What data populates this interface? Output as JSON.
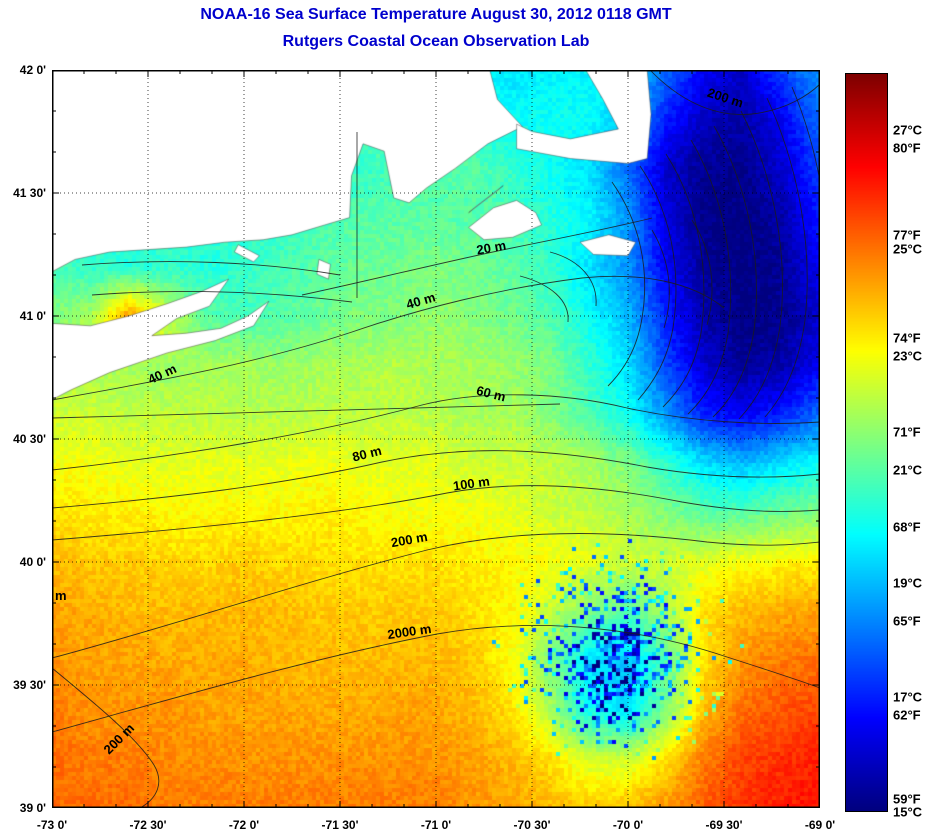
{
  "title": "NOAA-16 Sea Surface Temperature August 30, 2012 0118 GMT",
  "subtitle": "Rutgers Coastal Ocean Observation Lab",
  "title_color": "#0000cd",
  "axes": {
    "x_ticks": [
      "-73 0'",
      "-72 30'",
      "-72 0'",
      "-71 30'",
      "-71 0'",
      "-70 30'",
      "-70 0'",
      "-69 30'",
      "-69 0'"
    ],
    "y_ticks": [
      "42 0'",
      "41 30'",
      "41 0'",
      "40 30'",
      "40 0'",
      "39 30'",
      "39 0'"
    ]
  },
  "colorbar": {
    "labels": [
      {
        "text": "27°C",
        "temp_c": 27
      },
      {
        "text": "80°F",
        "temp_c": 26.67
      },
      {
        "text": "77°F",
        "temp_c": 25
      },
      {
        "text": "25°C",
        "temp_c": 25
      },
      {
        "text": "74°F",
        "temp_c": 23.33
      },
      {
        "text": "23°C",
        "temp_c": 23
      },
      {
        "text": "71°F",
        "temp_c": 21.67
      },
      {
        "text": "21°C",
        "temp_c": 21
      },
      {
        "text": "68°F",
        "temp_c": 20
      },
      {
        "text": "19°C",
        "temp_c": 19
      },
      {
        "text": "65°F",
        "temp_c": 18.33
      },
      {
        "text": "17°C",
        "temp_c": 17
      },
      {
        "text": "62°F",
        "temp_c": 16.67
      },
      {
        "text": "59°F",
        "temp_c": 15
      },
      {
        "text": "15°C",
        "temp_c": 15
      }
    ]
  },
  "contour_labels": [
    "20 m",
    "40 m",
    "40 m",
    "60 m",
    "80 m",
    "100 m",
    "200 m",
    "200 m",
    "200 m",
    "2000 m",
    "m"
  ],
  "chart_data": {
    "type": "heatmap",
    "title": "NOAA-16 Sea Surface Temperature August 30, 2012 0118 GMT",
    "subtitle": "Rutgers Coastal Ocean Observation Lab",
    "lon_range": [
      -73,
      -69
    ],
    "lat_range": [
      39,
      42
    ],
    "colorbar_range_degC": [
      15,
      28
    ],
    "colorbar_range_degF": [
      59,
      82.4
    ],
    "contours_m": [
      20,
      40,
      60,
      80,
      100,
      200,
      2000
    ],
    "sst_grid_degC": {
      "lons": [
        -73,
        -72.8,
        -72.6,
        -72.4,
        -72.2,
        -72,
        -71.8,
        -71.6,
        -71.4,
        -71.2,
        -71,
        -70.8,
        -70.6,
        -70.4,
        -70.2,
        -70,
        -69.8,
        -69.6,
        -69.4,
        -69.2,
        -69
      ],
      "lats": [
        42,
        41.8,
        41.6,
        41.4,
        41.2,
        41,
        40.8,
        40.6,
        40.4,
        40.2,
        40,
        39.8,
        39.6,
        39.4,
        39.2,
        39
      ],
      "values": [
        [
          21,
          21,
          21,
          21,
          21,
          21,
          21,
          21,
          21,
          21,
          20.5,
          20,
          19.5,
          19.8,
          19.8,
          19.5,
          18,
          16.5,
          16,
          17.5,
          18.5
        ],
        [
          21,
          21,
          21,
          21,
          21,
          21,
          21,
          21,
          21,
          21,
          20.5,
          20,
          20,
          20,
          20,
          19,
          17,
          15.8,
          15.5,
          16.5,
          18
        ],
        [
          20.5,
          20.5,
          20.5,
          20.5,
          20.5,
          20.5,
          20.5,
          20.5,
          20.5,
          20.8,
          21,
          21,
          20.5,
          20,
          19.5,
          18,
          16,
          15.2,
          15.2,
          16,
          17.5
        ],
        [
          20.5,
          20.5,
          20.5,
          20.5,
          20.5,
          20.5,
          20.5,
          20.8,
          21,
          21,
          21,
          21,
          20.8,
          20.3,
          19.8,
          18.5,
          16.2,
          15.1,
          15,
          15.5,
          17
        ],
        [
          20.8,
          20.5,
          20.3,
          20.5,
          20.3,
          20.5,
          20.8,
          21,
          21.2,
          21.3,
          21.5,
          21.3,
          21,
          20.5,
          19.5,
          18.5,
          16.5,
          15.3,
          15,
          15.3,
          16.5
        ],
        [
          21.5,
          22,
          24.5,
          22.5,
          21,
          20.8,
          21,
          21.2,
          21.5,
          21.5,
          21.8,
          21.5,
          21.3,
          20.8,
          20,
          19,
          17,
          15.5,
          15,
          15.2,
          16
        ],
        [
          22,
          22,
          22,
          21.8,
          22,
          22,
          21.8,
          22,
          22,
          22.2,
          22,
          22,
          21.8,
          21.5,
          20.5,
          19.5,
          17.5,
          16,
          15.3,
          15.5,
          16.5
        ],
        [
          22.5,
          22.5,
          22.3,
          22.3,
          22.3,
          22.2,
          22.2,
          22.3,
          22.3,
          22.3,
          22.2,
          22,
          22,
          21.5,
          20.8,
          20,
          18.5,
          17,
          16.5,
          17,
          18
        ],
        [
          23,
          23,
          22.8,
          22.8,
          22.8,
          22.8,
          22.8,
          23,
          22.8,
          22.8,
          22.8,
          22.5,
          22.5,
          22.3,
          22,
          21.5,
          20.5,
          19.5,
          19,
          19.5,
          20
        ],
        [
          23.5,
          23.3,
          23.3,
          23.2,
          23.2,
          23.2,
          23.2,
          23.3,
          23.2,
          23,
          23,
          23,
          22.8,
          22.5,
          22.3,
          22,
          21.5,
          21,
          21,
          21.3,
          21.5
        ],
        [
          24,
          23.8,
          23.8,
          23.6,
          23.6,
          23.8,
          23.6,
          23.6,
          23.5,
          23.5,
          23.5,
          23.3,
          23.2,
          23,
          22.8,
          22.5,
          22.5,
          22.8,
          23,
          23.2,
          23.3
        ],
        [
          24.3,
          24.2,
          24,
          24,
          24,
          24,
          24,
          23.8,
          23.8,
          23.8,
          23.8,
          23.5,
          23.2,
          22.5,
          21.5,
          21,
          22,
          23.5,
          24,
          24.2,
          24.3
        ],
        [
          24.5,
          24.3,
          24.3,
          24.2,
          24.2,
          24.2,
          24,
          24,
          24,
          24,
          24,
          23.8,
          23,
          21.5,
          19.5,
          19,
          21,
          23.5,
          24.5,
          24.8,
          25
        ],
        [
          24.8,
          24.5,
          24.5,
          24.5,
          24.3,
          24.3,
          24.3,
          24.2,
          24.2,
          24.3,
          24.3,
          24,
          23.5,
          22,
          20,
          19.5,
          21.5,
          24,
          25,
          25.3,
          25.5
        ],
        [
          25,
          24.8,
          24.8,
          24.6,
          24.6,
          24.5,
          24.5,
          24.5,
          24.5,
          24.5,
          24.5,
          24.3,
          24,
          23.5,
          22.5,
          22.5,
          23.5,
          24.8,
          25.5,
          25.8,
          26
        ],
        [
          25,
          25,
          25,
          24.8,
          24.8,
          24.8,
          24.8,
          24.8,
          24.8,
          24.8,
          24.8,
          24.5,
          24.3,
          24,
          23.8,
          24,
          24.5,
          25.2,
          25.8,
          26,
          26.2
        ]
      ]
    },
    "land_polygons": [
      [
        [
          -73,
          42
        ],
        [
          -70.72,
          42
        ],
        [
          -70.68,
          41.88
        ],
        [
          -70.55,
          41.77
        ],
        [
          -70.73,
          41.7
        ],
        [
          -70.9,
          41.6
        ],
        [
          -71.05,
          41.52
        ],
        [
          -71.14,
          41.46
        ],
        [
          -71.22,
          41.48
        ],
        [
          -71.27,
          41.67
        ],
        [
          -71.38,
          41.7
        ],
        [
          -71.44,
          41.57
        ],
        [
          -71.45,
          41.4
        ],
        [
          -71.58,
          41.37
        ],
        [
          -71.75,
          41.33
        ],
        [
          -71.9,
          41.31
        ],
        [
          -72.1,
          41.3
        ],
        [
          -72.3,
          41.28
        ],
        [
          -72.5,
          41.27
        ],
        [
          -72.7,
          41.26
        ],
        [
          -72.88,
          41.23
        ],
        [
          -73,
          41.18
        ]
      ],
      [
        [
          -73,
          40.97
        ],
        [
          -72.8,
          40.96
        ],
        [
          -72.6,
          41.0
        ],
        [
          -72.4,
          41.05
        ],
        [
          -72.22,
          41.1
        ],
        [
          -72.08,
          41.15
        ],
        [
          -72.18,
          41.04
        ],
        [
          -72.35,
          40.99
        ],
        [
          -72.48,
          40.92
        ],
        [
          -72.3,
          40.93
        ],
        [
          -72.12,
          40.95
        ],
        [
          -71.98,
          41.0
        ],
        [
          -71.87,
          41.06
        ],
        [
          -71.95,
          40.96
        ],
        [
          -72.15,
          40.9
        ],
        [
          -72.4,
          40.85
        ],
        [
          -72.7,
          40.77
        ],
        [
          -72.9,
          40.7
        ],
        [
          -73,
          40.66
        ]
      ],
      [
        [
          -70.58,
          41.78
        ],
        [
          -70.5,
          41.75
        ],
        [
          -70.3,
          41.72
        ],
        [
          -70.05,
          41.76
        ],
        [
          -70.13,
          41.88
        ],
        [
          -70.22,
          42.0
        ],
        [
          -69.9,
          42.0
        ],
        [
          -69.88,
          41.82
        ],
        [
          -69.9,
          41.64
        ],
        [
          -70.0,
          41.62
        ],
        [
          -70.3,
          41.64
        ],
        [
          -70.58,
          41.68
        ]
      ],
      [
        [
          -70.83,
          41.36
        ],
        [
          -70.7,
          41.44
        ],
        [
          -70.58,
          41.47
        ],
        [
          -70.48,
          41.42
        ],
        [
          -70.45,
          41.37
        ],
        [
          -70.6,
          41.32
        ],
        [
          -70.75,
          41.31
        ]
      ],
      [
        [
          -70.25,
          41.3
        ],
        [
          -70.1,
          41.33
        ],
        [
          -69.96,
          41.3
        ],
        [
          -70.0,
          41.245
        ],
        [
          -70.18,
          41.25
        ]
      ],
      [
        [
          -71.61,
          41.23
        ],
        [
          -71.55,
          41.21
        ],
        [
          -71.56,
          41.15
        ],
        [
          -71.62,
          41.17
        ]
      ],
      [
        [
          -72.03,
          41.29
        ],
        [
          -71.92,
          41.245
        ],
        [
          -71.95,
          41.22
        ],
        [
          -72.05,
          41.26
        ]
      ],
      [
        [
          -70.65,
          41.53
        ],
        [
          -70.8,
          41.44
        ],
        [
          -70.83,
          41.42
        ],
        [
          -70.68,
          41.51
        ]
      ]
    ]
  }
}
